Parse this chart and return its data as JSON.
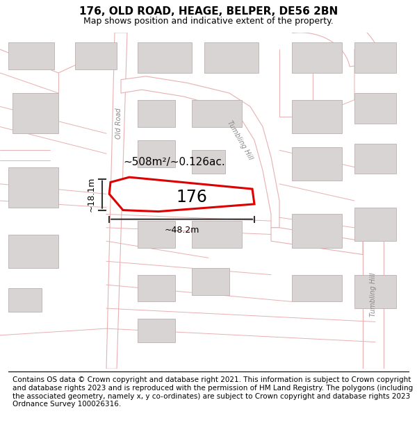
{
  "title": "176, OLD ROAD, HEAGE, BELPER, DE56 2BN",
  "subtitle": "Map shows position and indicative extent of the property.",
  "footer": "Contains OS data © Crown copyright and database right 2021. This information is subject to Crown copyright and database rights 2023 and is reproduced with the permission of HM Land Registry. The polygons (including the associated geometry, namely x, y co-ordinates) are subject to Crown copyright and database rights 2023 Ordnance Survey 100026316.",
  "background_color": "#ffffff",
  "map_bg_color": "#f5f0f0",
  "road_outline_color": "#e8b0b0",
  "road_center_color": "#c8c8c8",
  "building_fill": "#d8d4d4",
  "building_edge": "#c0b8b8",
  "highlight_color": "#dd0000",
  "property_label": "176",
  "area_label": "~508m²/~0.126ac.",
  "width_label": "~48.2m",
  "height_label": "~18.1m",
  "road_label_old": "Old Road",
  "road_label_tumbling_diag": "Tumbling Hill",
  "road_label_tumbling_vert": "Tumbling Hill",
  "title_fontsize": 11,
  "subtitle_fontsize": 9,
  "footer_fontsize": 7.5
}
